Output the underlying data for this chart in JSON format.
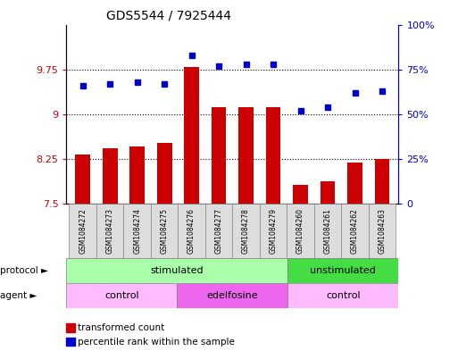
{
  "title": "GDS5544 / 7925444",
  "samples": [
    "GSM1084272",
    "GSM1084273",
    "GSM1084274",
    "GSM1084275",
    "GSM1084276",
    "GSM1084277",
    "GSM1084278",
    "GSM1084279",
    "GSM1084260",
    "GSM1084261",
    "GSM1084262",
    "GSM1084263"
  ],
  "bar_values": [
    8.32,
    8.43,
    8.46,
    8.52,
    9.79,
    9.12,
    9.12,
    9.12,
    7.82,
    7.87,
    8.19,
    8.25
  ],
  "dot_values": [
    66,
    67,
    68,
    67,
    83,
    77,
    78,
    78,
    52,
    54,
    62,
    63
  ],
  "bar_color": "#cc0000",
  "dot_color": "#0000cc",
  "ylim_left": [
    7.5,
    10.5
  ],
  "ylim_right": [
    0,
    100
  ],
  "yticks_left": [
    7.5,
    8.25,
    9.0,
    9.75
  ],
  "yticks_right": [
    0,
    25,
    50,
    75,
    100
  ],
  "ytick_labels_left": [
    "7.5",
    "8.25",
    "9",
    "9.75"
  ],
  "ytick_labels_right": [
    "0",
    "25%",
    "50%",
    "75%",
    "100%"
  ],
  "protocol_segs": [
    {
      "label": "stimulated",
      "start": 0,
      "end": 8,
      "color": "#aaffaa"
    },
    {
      "label": "unstimulated",
      "start": 8,
      "end": 12,
      "color": "#44dd44"
    }
  ],
  "agent_segs": [
    {
      "label": "control",
      "start": 0,
      "end": 4,
      "color": "#ffbbff"
    },
    {
      "label": "edelfosine",
      "start": 4,
      "end": 8,
      "color": "#ee66ee"
    },
    {
      "label": "control",
      "start": 8,
      "end": 12,
      "color": "#ffbbff"
    }
  ],
  "legend_bar_label": "transformed count",
  "legend_dot_label": "percentile rank within the sample",
  "protocol_row_label": "protocol",
  "agent_row_label": "agent",
  "grid_yticks": [
    8.25,
    9.0,
    9.75
  ],
  "sample_box_color": "#dddddd",
  "sample_box_edge": "#888888"
}
